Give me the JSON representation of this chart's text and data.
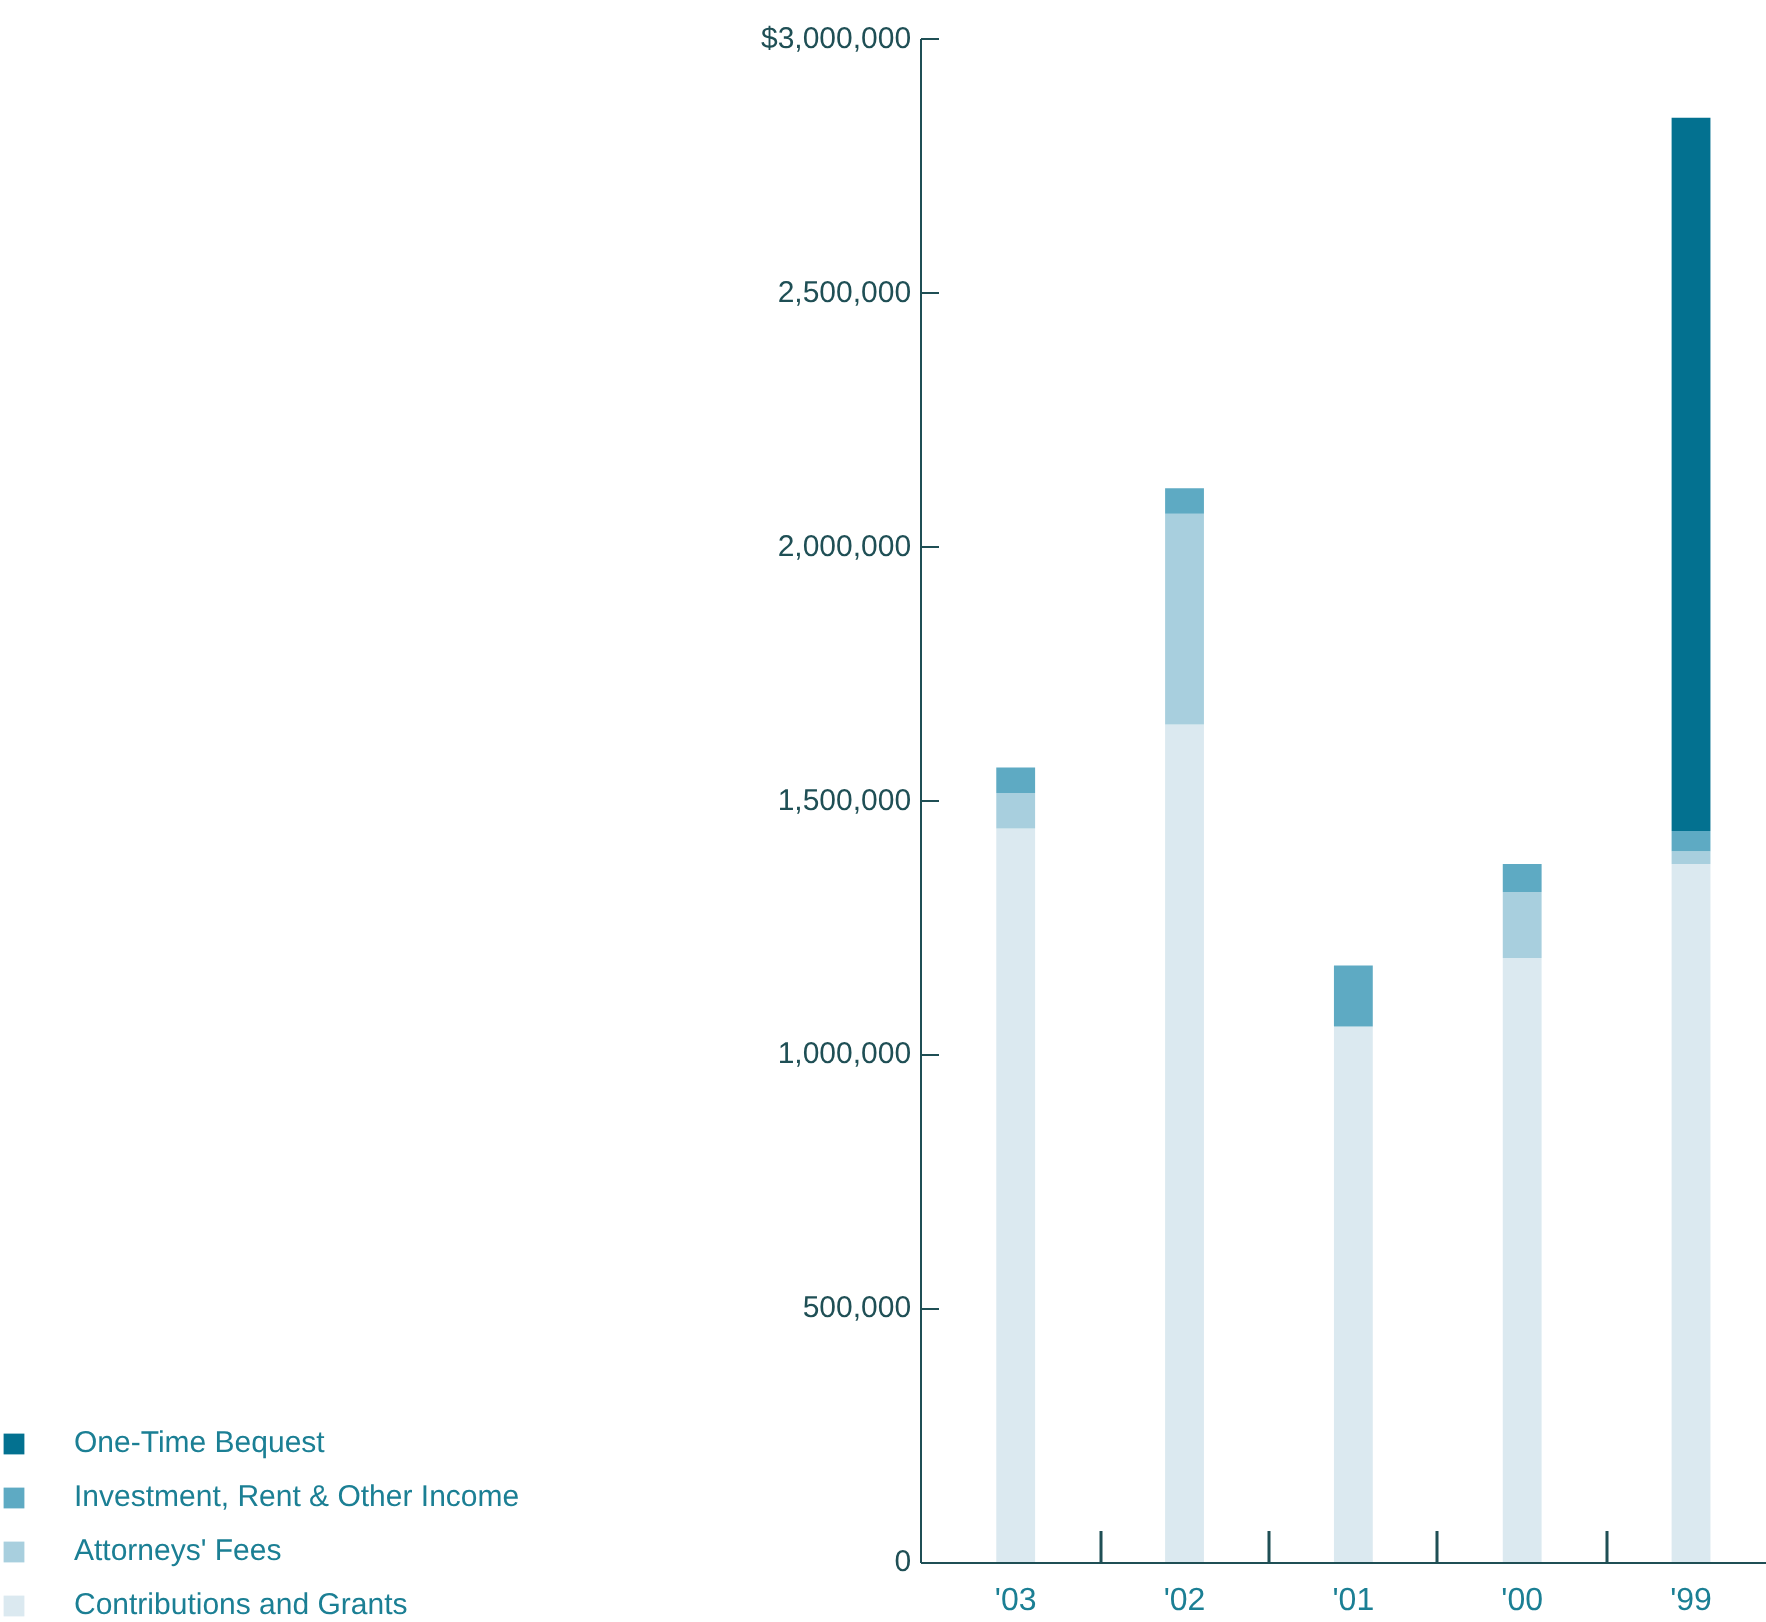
{
  "chart_data": {
    "type": "bar",
    "stacked": true,
    "categories": [
      "'03",
      "'02",
      "'01",
      "'00",
      "'99"
    ],
    "series": [
      {
        "name": "Contributions and Grants",
        "color": "#dbe9f0",
        "values": [
          1445000,
          1650000,
          1055000,
          1190000,
          1375000
        ]
      },
      {
        "name": "Attorneys' Fees",
        "color": "#a8cfde",
        "values": [
          70000,
          415000,
          0,
          130000,
          25000
        ]
      },
      {
        "name": "Investment, Rent & Other Income",
        "color": "#5eaac3",
        "values": [
          50000,
          50000,
          120000,
          55000,
          40000
        ]
      },
      {
        "name": "One-Time Bequest",
        "color": "#037190",
        "values": [
          0,
          0,
          0,
          0,
          1405000
        ]
      }
    ],
    "ylim": [
      0,
      3000000
    ],
    "yticks": [
      0,
      {
        "value": 500000,
        "label": "500,000"
      },
      {
        "value": 1000000,
        "label": "1,000,000"
      },
      {
        "value": 1500000,
        "label": "1,500,000"
      },
      {
        "value": 2000000,
        "label": "2,000,000"
      },
      {
        "value": 2500000,
        "label": "2,500,000"
      },
      {
        "value": 3000000,
        "label": "$3,000,000"
      }
    ],
    "grid": false,
    "legend": "bottom left"
  }
}
